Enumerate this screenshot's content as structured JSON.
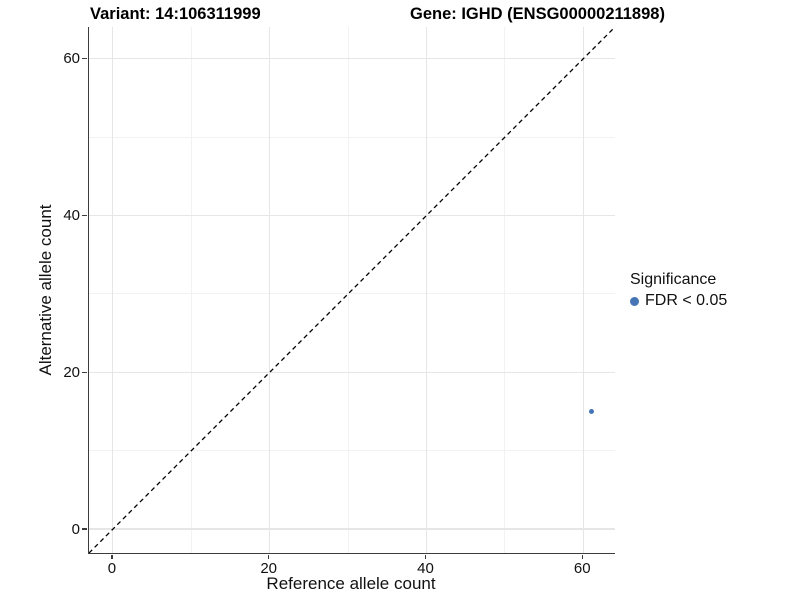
{
  "chart_data": {
    "type": "scatter",
    "title_left": "Variant: 14:106311999",
    "title_right": "Gene: IGHD (ENSG00000211898)",
    "xlabel": "Reference allele count",
    "ylabel": "Alternative allele count",
    "xlim": [
      -3.05,
      64.05
    ],
    "ylim": [
      -3.05,
      64.05
    ],
    "x_ticks": [
      0,
      20,
      40,
      60
    ],
    "y_ticks": [
      0,
      20,
      40,
      60
    ],
    "x_minor_ticks": [
      10,
      30,
      50
    ],
    "y_minor_ticks": [
      10,
      30,
      50
    ],
    "grid": true,
    "reference_line": {
      "type": "identity",
      "slope": 1,
      "intercept": 0,
      "style": "dashed",
      "color": "#000000"
    },
    "series": [
      {
        "name": "FDR < 0.05",
        "color": "#4575b4",
        "points": [
          {
            "x": 61,
            "y": 15
          }
        ]
      }
    ],
    "legend": {
      "title": "Significance",
      "position": "right",
      "items": [
        {
          "label": "FDR < 0.05",
          "color": "#4575b4"
        }
      ]
    }
  },
  "colors": {
    "point": "#4575b4",
    "grid_major": "#e6e6e6",
    "grid_minor": "#f2f2f2",
    "axis_line": "#3c3c3c",
    "text": "#111111"
  }
}
